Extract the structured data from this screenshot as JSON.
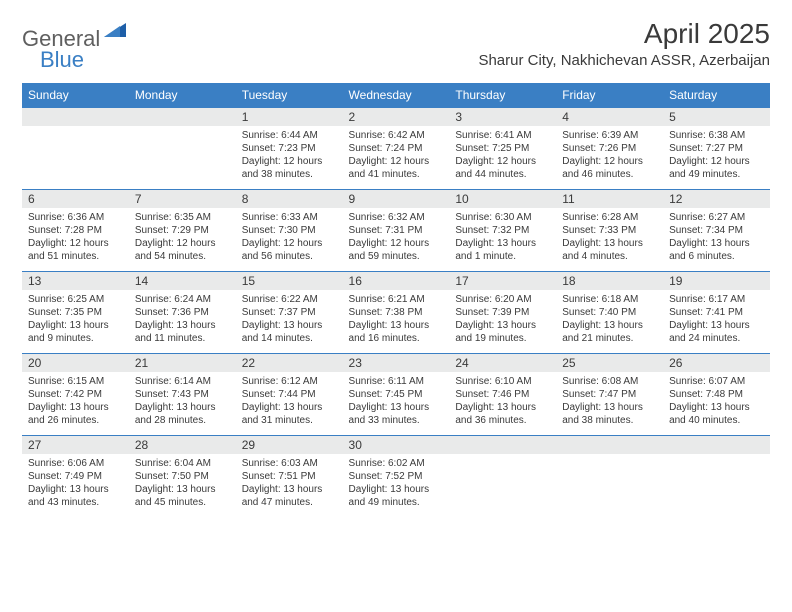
{
  "logo": {
    "general": "General",
    "blue": "Blue"
  },
  "title": {
    "month_year": "April 2025",
    "location": "Sharur City, Nakhichevan ASSR, Azerbaijan"
  },
  "colors": {
    "header_bg": "#3a7fc4",
    "header_text": "#ffffff",
    "daynum_bg": "#e9eaea",
    "border_top": "#3a7fc4",
    "body_text": "#3a3a3a",
    "logo_gray": "#5f5f5f",
    "logo_blue": "#3a7fc4",
    "background": "#ffffff"
  },
  "weekdays": [
    "Sunday",
    "Monday",
    "Tuesday",
    "Wednesday",
    "Thursday",
    "Friday",
    "Saturday"
  ],
  "weeks": [
    [
      null,
      null,
      {
        "n": "1",
        "sr": "Sunrise: 6:44 AM",
        "ss": "Sunset: 7:23 PM",
        "dl1": "Daylight: 12 hours",
        "dl2": "and 38 minutes."
      },
      {
        "n": "2",
        "sr": "Sunrise: 6:42 AM",
        "ss": "Sunset: 7:24 PM",
        "dl1": "Daylight: 12 hours",
        "dl2": "and 41 minutes."
      },
      {
        "n": "3",
        "sr": "Sunrise: 6:41 AM",
        "ss": "Sunset: 7:25 PM",
        "dl1": "Daylight: 12 hours",
        "dl2": "and 44 minutes."
      },
      {
        "n": "4",
        "sr": "Sunrise: 6:39 AM",
        "ss": "Sunset: 7:26 PM",
        "dl1": "Daylight: 12 hours",
        "dl2": "and 46 minutes."
      },
      {
        "n": "5",
        "sr": "Sunrise: 6:38 AM",
        "ss": "Sunset: 7:27 PM",
        "dl1": "Daylight: 12 hours",
        "dl2": "and 49 minutes."
      }
    ],
    [
      {
        "n": "6",
        "sr": "Sunrise: 6:36 AM",
        "ss": "Sunset: 7:28 PM",
        "dl1": "Daylight: 12 hours",
        "dl2": "and 51 minutes."
      },
      {
        "n": "7",
        "sr": "Sunrise: 6:35 AM",
        "ss": "Sunset: 7:29 PM",
        "dl1": "Daylight: 12 hours",
        "dl2": "and 54 minutes."
      },
      {
        "n": "8",
        "sr": "Sunrise: 6:33 AM",
        "ss": "Sunset: 7:30 PM",
        "dl1": "Daylight: 12 hours",
        "dl2": "and 56 minutes."
      },
      {
        "n": "9",
        "sr": "Sunrise: 6:32 AM",
        "ss": "Sunset: 7:31 PM",
        "dl1": "Daylight: 12 hours",
        "dl2": "and 59 minutes."
      },
      {
        "n": "10",
        "sr": "Sunrise: 6:30 AM",
        "ss": "Sunset: 7:32 PM",
        "dl1": "Daylight: 13 hours",
        "dl2": "and 1 minute."
      },
      {
        "n": "11",
        "sr": "Sunrise: 6:28 AM",
        "ss": "Sunset: 7:33 PM",
        "dl1": "Daylight: 13 hours",
        "dl2": "and 4 minutes."
      },
      {
        "n": "12",
        "sr": "Sunrise: 6:27 AM",
        "ss": "Sunset: 7:34 PM",
        "dl1": "Daylight: 13 hours",
        "dl2": "and 6 minutes."
      }
    ],
    [
      {
        "n": "13",
        "sr": "Sunrise: 6:25 AM",
        "ss": "Sunset: 7:35 PM",
        "dl1": "Daylight: 13 hours",
        "dl2": "and 9 minutes."
      },
      {
        "n": "14",
        "sr": "Sunrise: 6:24 AM",
        "ss": "Sunset: 7:36 PM",
        "dl1": "Daylight: 13 hours",
        "dl2": "and 11 minutes."
      },
      {
        "n": "15",
        "sr": "Sunrise: 6:22 AM",
        "ss": "Sunset: 7:37 PM",
        "dl1": "Daylight: 13 hours",
        "dl2": "and 14 minutes."
      },
      {
        "n": "16",
        "sr": "Sunrise: 6:21 AM",
        "ss": "Sunset: 7:38 PM",
        "dl1": "Daylight: 13 hours",
        "dl2": "and 16 minutes."
      },
      {
        "n": "17",
        "sr": "Sunrise: 6:20 AM",
        "ss": "Sunset: 7:39 PM",
        "dl1": "Daylight: 13 hours",
        "dl2": "and 19 minutes."
      },
      {
        "n": "18",
        "sr": "Sunrise: 6:18 AM",
        "ss": "Sunset: 7:40 PM",
        "dl1": "Daylight: 13 hours",
        "dl2": "and 21 minutes."
      },
      {
        "n": "19",
        "sr": "Sunrise: 6:17 AM",
        "ss": "Sunset: 7:41 PM",
        "dl1": "Daylight: 13 hours",
        "dl2": "and 24 minutes."
      }
    ],
    [
      {
        "n": "20",
        "sr": "Sunrise: 6:15 AM",
        "ss": "Sunset: 7:42 PM",
        "dl1": "Daylight: 13 hours",
        "dl2": "and 26 minutes."
      },
      {
        "n": "21",
        "sr": "Sunrise: 6:14 AM",
        "ss": "Sunset: 7:43 PM",
        "dl1": "Daylight: 13 hours",
        "dl2": "and 28 minutes."
      },
      {
        "n": "22",
        "sr": "Sunrise: 6:12 AM",
        "ss": "Sunset: 7:44 PM",
        "dl1": "Daylight: 13 hours",
        "dl2": "and 31 minutes."
      },
      {
        "n": "23",
        "sr": "Sunrise: 6:11 AM",
        "ss": "Sunset: 7:45 PM",
        "dl1": "Daylight: 13 hours",
        "dl2": "and 33 minutes."
      },
      {
        "n": "24",
        "sr": "Sunrise: 6:10 AM",
        "ss": "Sunset: 7:46 PM",
        "dl1": "Daylight: 13 hours",
        "dl2": "and 36 minutes."
      },
      {
        "n": "25",
        "sr": "Sunrise: 6:08 AM",
        "ss": "Sunset: 7:47 PM",
        "dl1": "Daylight: 13 hours",
        "dl2": "and 38 minutes."
      },
      {
        "n": "26",
        "sr": "Sunrise: 6:07 AM",
        "ss": "Sunset: 7:48 PM",
        "dl1": "Daylight: 13 hours",
        "dl2": "and 40 minutes."
      }
    ],
    [
      {
        "n": "27",
        "sr": "Sunrise: 6:06 AM",
        "ss": "Sunset: 7:49 PM",
        "dl1": "Daylight: 13 hours",
        "dl2": "and 43 minutes."
      },
      {
        "n": "28",
        "sr": "Sunrise: 6:04 AM",
        "ss": "Sunset: 7:50 PM",
        "dl1": "Daylight: 13 hours",
        "dl2": "and 45 minutes."
      },
      {
        "n": "29",
        "sr": "Sunrise: 6:03 AM",
        "ss": "Sunset: 7:51 PM",
        "dl1": "Daylight: 13 hours",
        "dl2": "and 47 minutes."
      },
      {
        "n": "30",
        "sr": "Sunrise: 6:02 AM",
        "ss": "Sunset: 7:52 PM",
        "dl1": "Daylight: 13 hours",
        "dl2": "and 49 minutes."
      },
      null,
      null,
      null
    ]
  ]
}
